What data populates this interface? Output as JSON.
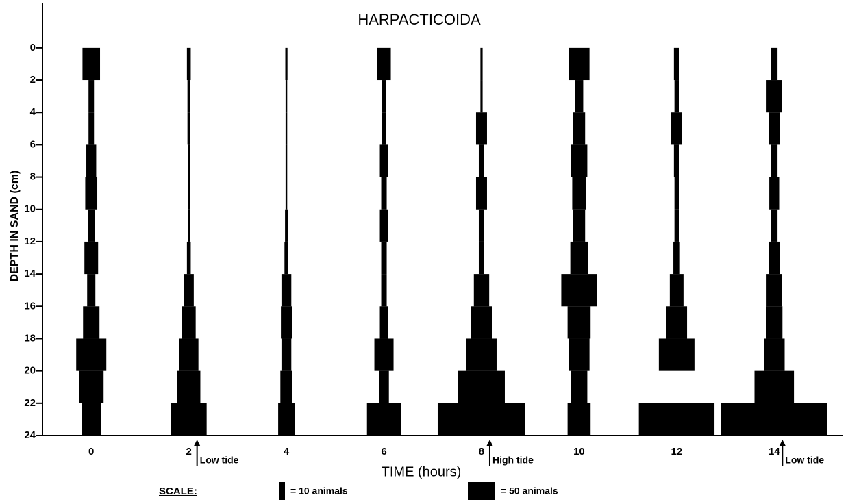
{
  "chart_data": {
    "type": "kite",
    "title": "HARPACTICOIDA",
    "x_label": "TIME (hours)",
    "y_label": "DEPTH IN SAND (cm)",
    "x": [
      0,
      2,
      4,
      6,
      8,
      10,
      12,
      14
    ],
    "xlim": [
      -1,
      15.4
    ],
    "xticks": [
      0,
      2,
      4,
      6,
      8,
      10,
      12,
      14
    ],
    "depth_bins": [
      0,
      2,
      4,
      6,
      8,
      10,
      12,
      14,
      16,
      18,
      20,
      22,
      24
    ],
    "ylim": [
      24,
      -2.75
    ],
    "yticks": [
      0,
      2,
      4,
      6,
      8,
      10,
      12,
      14,
      16,
      18,
      20,
      22,
      24
    ],
    "color": "#000000",
    "values": [
      [
        32,
        10,
        10,
        18,
        22,
        12,
        25,
        15,
        30,
        55,
        45,
        35
      ],
      [
        7,
        5,
        5,
        4,
        4,
        4,
        7,
        18,
        25,
        35,
        42,
        65
      ],
      [
        4,
        3,
        3,
        3,
        3,
        5,
        7,
        18,
        20,
        18,
        22,
        30
      ],
      [
        25,
        8,
        8,
        15,
        10,
        15,
        10,
        10,
        15,
        35,
        18,
        62
      ],
      [
        4,
        4,
        20,
        10,
        20,
        10,
        10,
        28,
        38,
        55,
        85,
        160
      ],
      [
        38,
        15,
        22,
        30,
        25,
        22,
        32,
        65,
        42,
        38,
        30,
        42
      ],
      [
        10,
        8,
        20,
        10,
        8,
        8,
        12,
        25,
        38,
        65,
        0,
        138
      ],
      [
        12,
        28,
        20,
        12,
        18,
        12,
        20,
        28,
        30,
        38,
        72,
        194
      ]
    ],
    "annotations": [
      {
        "text": "Low tide",
        "x": 2
      },
      {
        "text": "High tide",
        "x": 8
      },
      {
        "text": "Low tide",
        "x": 14
      }
    ],
    "scale": {
      "label": "SCALE:",
      "items": [
        {
          "value": 10,
          "label": "= 10 animals"
        },
        {
          "value": 50,
          "label": "= 50 animals"
        }
      ]
    }
  }
}
